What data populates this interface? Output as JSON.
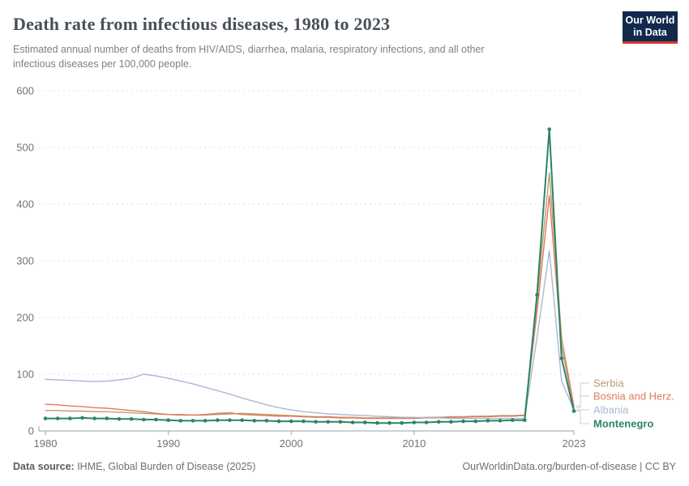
{
  "header": {
    "title": "Death rate from infectious diseases, 1980 to 2023",
    "subtitle_line1": "Estimated annual number of deaths from HIV/AIDS, diarrhea, malaria, respiratory infections, and all other",
    "subtitle_line2": "infectious diseases per 100,000 people.",
    "logo": {
      "line1": "Our World",
      "line2": "in Data",
      "bg_color": "#12294e",
      "accent_color": "#d0382f"
    }
  },
  "chart_data": {
    "type": "line",
    "title": "Death rate from infectious diseases, 1980 to 2023",
    "xlabel": "",
    "ylabel": "",
    "xlim": [
      1980,
      2023
    ],
    "ylim": [
      0,
      600
    ],
    "xticks": [
      1980,
      1990,
      2000,
      2010,
      2023
    ],
    "yticks": [
      0,
      100,
      200,
      300,
      400,
      500,
      600
    ],
    "grid": "horizontal-dashed",
    "legend_position": "right-of-line-ends",
    "colors": {
      "grid": "#dcdfe2",
      "axis": "#9aa1a7",
      "tick_text": "#6d757d",
      "connector": "#c9ced3"
    },
    "series": [
      {
        "name": "Serbia",
        "color": "#bd9b6c",
        "markers": false,
        "bold": false,
        "label_y": 473,
        "values": [
          36,
          36,
          35,
          35,
          34,
          34,
          33,
          32,
          31,
          30,
          29,
          29,
          28,
          28,
          29,
          30,
          31,
          30,
          29,
          28,
          27,
          26,
          25,
          25,
          24,
          24,
          23,
          23,
          23,
          23,
          23,
          24,
          24,
          25,
          25,
          26,
          26,
          27,
          27,
          28,
          230,
          455,
          165,
          44
        ]
      },
      {
        "name": "Bosnia and Herz.",
        "color": "#e0795f",
        "markers": false,
        "bold": false,
        "label_y": 489,
        "values": [
          47,
          46,
          44,
          43,
          41,
          40,
          38,
          36,
          34,
          31,
          29,
          28,
          28,
          29,
          31,
          32,
          29,
          28,
          27,
          26,
          26,
          25,
          24,
          24,
          23,
          23,
          22,
          22,
          22,
          22,
          22,
          23,
          23,
          24,
          24,
          25,
          25,
          26,
          26,
          27,
          210,
          415,
          150,
          41
        ]
      },
      {
        "name": "Albania",
        "color": "#a8b9d2",
        "markers": false,
        "bold": false,
        "label_y": 506,
        "values": [
          91,
          90,
          89,
          88,
          87,
          88,
          90,
          93,
          100,
          97,
          93,
          88,
          83,
          77,
          71,
          65,
          58,
          52,
          46,
          41,
          37,
          34,
          32,
          30,
          29,
          28,
          27,
          26,
          25,
          24,
          24,
          23,
          23,
          22,
          22,
          22,
          22,
          22,
          22,
          22,
          165,
          318,
          88,
          37
        ]
      },
      {
        "name": "Montenegro",
        "color": "#2c8465",
        "markers": true,
        "bold": true,
        "label_y": 523,
        "values": [
          22,
          22,
          22,
          23,
          22,
          22,
          21,
          21,
          20,
          20,
          19,
          18,
          18,
          18,
          19,
          19,
          19,
          18,
          18,
          17,
          17,
          17,
          16,
          16,
          16,
          15,
          15,
          14,
          14,
          14,
          15,
          15,
          16,
          16,
          17,
          17,
          18,
          18,
          19,
          19,
          240,
          532,
          128,
          35
        ]
      }
    ]
  },
  "footer": {
    "datasource_label": "Data source:",
    "datasource_value": " IHME, Global Burden of Disease (2025)",
    "credit": "OurWorldinData.org/burden-of-disease | CC BY"
  }
}
